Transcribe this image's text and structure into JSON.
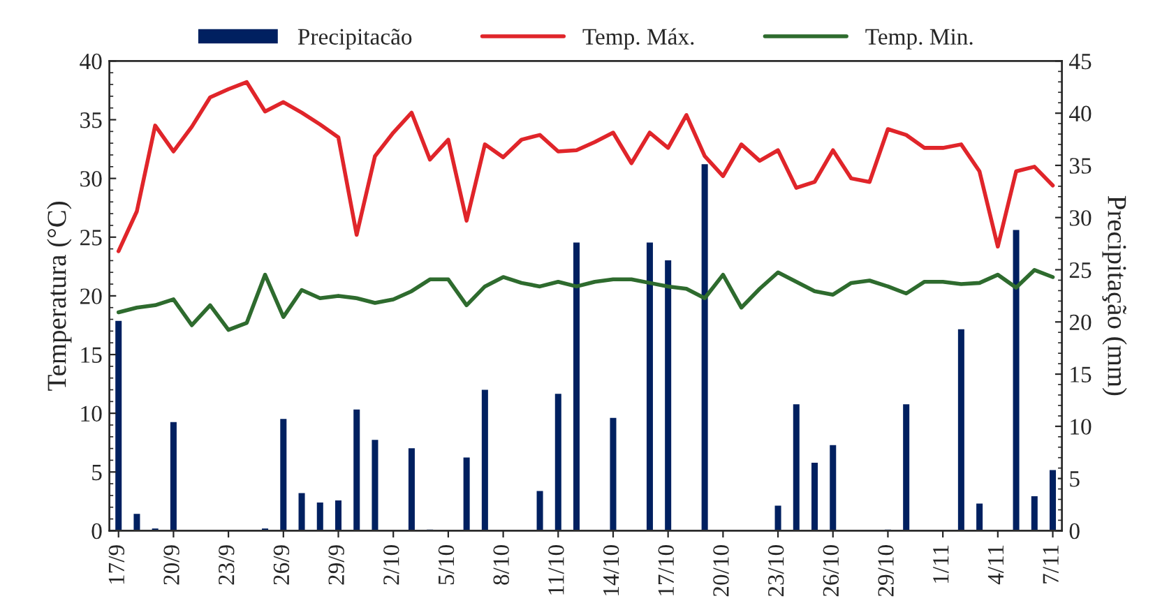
{
  "chart_data": {
    "type": "line",
    "categories": [
      "17/9",
      null,
      null,
      "20/9",
      null,
      null,
      "23/9",
      null,
      null,
      "26/9",
      null,
      null,
      "29/9",
      null,
      null,
      "2/10",
      null,
      null,
      "5/10",
      null,
      null,
      "8/10",
      null,
      null,
      "11/10",
      null,
      null,
      "14/10",
      null,
      null,
      "17/10",
      null,
      null,
      "20/10",
      null,
      null,
      "23/10",
      null,
      null,
      "26/10",
      null,
      null,
      "29/10",
      null,
      null,
      "1/11",
      null,
      null,
      "4/11",
      null,
      null,
      "7/11"
    ],
    "series": [
      {
        "name": "Precipitacão",
        "type": "bar",
        "axis": "y2",
        "color": "#002060",
        "values": [
          20.2,
          1.7,
          0.3,
          10.5,
          null,
          null,
          null,
          null,
          0.3,
          10.8,
          3.7,
          2.8,
          3.0,
          11.7,
          8.8,
          null,
          8.0,
          0.2,
          null,
          7.1,
          13.6,
          null,
          null,
          3.9,
          13.2,
          27.7,
          null,
          10.9,
          null,
          27.7,
          26.0,
          null,
          35.2,
          null,
          null,
          null,
          2.5,
          12.2,
          6.6,
          8.3,
          null,
          null,
          0.2,
          12.2,
          null,
          null,
          19.4,
          2.7,
          null,
          28.9,
          3.4,
          5.9
        ]
      },
      {
        "name": "Temp. Máx.",
        "color": "#e0252a",
        "values": [
          23.8,
          27.2,
          34.5,
          32.3,
          34.4,
          36.9,
          37.6,
          38.2,
          35.7,
          36.5,
          35.6,
          34.6,
          33.5,
          25.2,
          31.9,
          33.9,
          35.6,
          31.6,
          33.3,
          26.4,
          32.9,
          31.8,
          33.3,
          33.7,
          32.3,
          32.4,
          33.1,
          33.9,
          31.3,
          33.9,
          32.6,
          35.4,
          31.9,
          30.2,
          32.9,
          31.5,
          32.4,
          29.2,
          29.7,
          32.4,
          30.0,
          29.7,
          34.2,
          33.7,
          32.6,
          32.6,
          32.9,
          30.6,
          24.2,
          30.6,
          31.0,
          29.4
        ]
      },
      {
        "name": "Temp. Min.",
        "color": "#2e6b2e",
        "values": [
          18.6,
          19.0,
          19.2,
          19.7,
          17.5,
          19.2,
          17.1,
          17.7,
          21.8,
          18.2,
          20.5,
          19.8,
          20.0,
          19.8,
          19.4,
          19.7,
          20.4,
          21.4,
          21.4,
          19.2,
          20.8,
          21.6,
          21.1,
          20.8,
          21.2,
          20.8,
          21.2,
          21.4,
          21.4,
          21.1,
          20.8,
          20.6,
          19.8,
          21.8,
          19.0,
          20.6,
          22.0,
          21.2,
          20.4,
          20.1,
          21.1,
          21.3,
          20.8,
          20.2,
          21.2,
          21.2,
          21.0,
          21.1,
          21.8,
          20.7,
          22.2,
          21.6
        ]
      }
    ],
    "ylabel": "Temperatura (°C)",
    "y2label": "Precipitação (mm)",
    "ylim": [
      0,
      40
    ],
    "yticks": [
      0,
      5,
      10,
      15,
      20,
      25,
      30,
      35,
      40
    ],
    "y2lim": [
      0,
      45
    ],
    "y2ticks": [
      0,
      5,
      10,
      15,
      20,
      25,
      30,
      35,
      40,
      45
    ],
    "legend": "top",
    "grid": false
  }
}
